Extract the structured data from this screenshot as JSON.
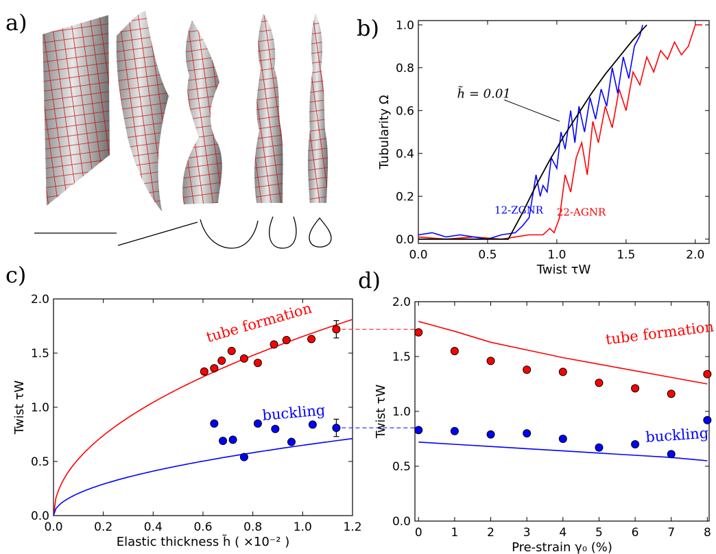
{
  "panels": {
    "a": "a)",
    "b": "b)",
    "c": "c)",
    "d": "d)"
  },
  "panel_a": {
    "type": "rendered-surfaces",
    "count": 5,
    "colors": {
      "mesh": "#cc0000",
      "surface": "#bdbdbd"
    }
  },
  "chart_data": [
    {
      "id": "b",
      "type": "line",
      "xlabel": "Twist τW",
      "ylabel": "Tubularity Ω",
      "xlim": [
        0,
        2.1
      ],
      "ylim": [
        -0.02,
        1.02
      ],
      "xticks": [
        0.0,
        0.5,
        1.0,
        1.5,
        2.0
      ],
      "xtick_labels": [
        "0.0",
        "0.5",
        "1.0",
        "1.5",
        "2.0"
      ],
      "yticks": [
        0.0,
        0.2,
        0.4,
        0.6,
        0.8,
        1.0
      ],
      "ytick_labels": [
        "0.0",
        "0.2",
        "0.4",
        "0.6",
        "0.8",
        "1.0"
      ],
      "annotations": [
        "h̃ = 0.01",
        "12-ZGNR",
        "22-AGNR"
      ],
      "series": [
        {
          "name": "h̃ = 0.01",
          "color": "#000000",
          "x": [
            0.0,
            0.65,
            0.75,
            0.85,
            0.95,
            1.05,
            1.15,
            1.25,
            1.35,
            1.45,
            1.55,
            1.65
          ],
          "y": [
            0.0,
            0.0,
            0.12,
            0.25,
            0.37,
            0.48,
            0.58,
            0.68,
            0.77,
            0.85,
            0.93,
            1.0
          ]
        },
        {
          "name": "12-ZGNR",
          "color": "#0000ff",
          "x": [
            0.0,
            0.1,
            0.2,
            0.3,
            0.4,
            0.5,
            0.6,
            0.7,
            0.75,
            0.8,
            0.85,
            0.88,
            0.9,
            0.93,
            0.96,
            1.0,
            1.03,
            1.06,
            1.1,
            1.13,
            1.16,
            1.2,
            1.24,
            1.28,
            1.32,
            1.36,
            1.4,
            1.44,
            1.48,
            1.52,
            1.56,
            1.6,
            1.62
          ],
          "y": [
            0.02,
            0.03,
            0.01,
            0.02,
            0.01,
            0.0,
            0.02,
            0.03,
            0.06,
            0.1,
            0.3,
            0.2,
            0.25,
            0.22,
            0.38,
            0.33,
            0.5,
            0.42,
            0.6,
            0.45,
            0.62,
            0.5,
            0.66,
            0.56,
            0.7,
            0.62,
            0.8,
            0.68,
            0.85,
            0.75,
            0.9,
            0.95,
            1.0
          ]
        },
        {
          "name": "22-AGNR",
          "color": "#ff0000",
          "x": [
            0.0,
            0.2,
            0.4,
            0.6,
            0.8,
            0.9,
            0.95,
            0.98,
            1.02,
            1.06,
            1.1,
            1.14,
            1.18,
            1.22,
            1.26,
            1.3,
            1.35,
            1.4,
            1.45,
            1.5,
            1.55,
            1.6,
            1.65,
            1.7,
            1.75,
            1.8,
            1.85,
            1.9,
            1.95,
            2.0,
            2.05
          ],
          "y": [
            0.01,
            0.0,
            0.01,
            0.0,
            0.02,
            0.02,
            0.05,
            0.03,
            0.1,
            0.3,
            0.22,
            0.38,
            0.45,
            0.3,
            0.55,
            0.45,
            0.62,
            0.52,
            0.7,
            0.6,
            0.78,
            0.72,
            0.85,
            0.78,
            0.88,
            0.84,
            0.92,
            0.86,
            0.9,
            1.0,
            1.0
          ]
        }
      ]
    },
    {
      "id": "c",
      "type": "scatter",
      "xlabel": "Elastic thickness h̃ ( ×10⁻² )",
      "ylabel": "Twist τW",
      "xlim": [
        0,
        1.2
      ],
      "ylim": [
        0,
        2.0
      ],
      "xticks": [
        0.0,
        0.2,
        0.4,
        0.6,
        0.8,
        1.0,
        1.2
      ],
      "xtick_labels": [
        "0.0",
        "0.2",
        "0.4",
        "0.6",
        "0.8",
        "1.0",
        "1.2"
      ],
      "yticks": [
        0.0,
        0.5,
        1.0,
        1.5,
        2.0
      ],
      "ytick_labels": [
        "0.0",
        "0.5",
        "1.0",
        "1.5",
        "2.0"
      ],
      "annotations": [
        "tube formation",
        "buckling"
      ],
      "series": [
        {
          "name": "tube formation",
          "color": "#ff0000",
          "kind": "curve",
          "a": 1.653,
          "p": 0.5
        },
        {
          "name": "buckling",
          "color": "#0000ff",
          "kind": "curve",
          "a": 0.649,
          "p": 0.5
        },
        {
          "name": "tube formation",
          "color": "#ff0000",
          "kind": "points",
          "x": [
            0.605,
            0.645,
            0.675,
            0.715,
            0.765,
            0.82,
            0.885,
            0.935,
            1.035,
            1.135
          ],
          "y": [
            1.33,
            1.36,
            1.43,
            1.52,
            1.45,
            1.41,
            1.58,
            1.62,
            1.63,
            1.72
          ],
          "err": [
            0,
            0,
            0,
            0,
            0,
            0,
            0,
            0,
            0,
            0.08
          ]
        },
        {
          "name": "buckling",
          "color": "#0000ff",
          "kind": "points",
          "x": [
            0.645,
            0.68,
            0.72,
            0.765,
            0.82,
            0.89,
            0.955,
            1.04,
            1.135
          ],
          "y": [
            0.85,
            0.69,
            0.7,
            0.54,
            0.85,
            0.8,
            0.68,
            0.84,
            0.81
          ],
          "err": [
            0,
            0,
            0,
            0,
            0,
            0,
            0,
            0,
            0.08
          ]
        }
      ]
    },
    {
      "id": "d",
      "type": "scatter",
      "xlabel": "Pre-strain γ₀ (%)",
      "ylabel": "Twist τW",
      "xlim": [
        -0.1,
        8.05
      ],
      "ylim": [
        0,
        2.0
      ],
      "xticks": [
        0,
        1,
        2,
        3,
        4,
        5,
        6,
        7,
        8
      ],
      "xtick_labels": [
        "0",
        "1",
        "2",
        "3",
        "4",
        "5",
        "6",
        "7",
        "8"
      ],
      "yticks": [
        0.0,
        0.5,
        1.0,
        1.5,
        2.0
      ],
      "ytick_labels": [
        "0.0",
        "0.5",
        "1.0",
        "1.5",
        "2.0"
      ],
      "annotations": [
        "tube formation",
        "buckling"
      ],
      "series": [
        {
          "name": "tube formation",
          "color": "#ff0000",
          "kind": "line",
          "x": [
            0,
            1,
            2,
            3,
            4,
            5,
            6,
            7,
            8
          ],
          "y": [
            1.82,
            1.73,
            1.63,
            1.56,
            1.49,
            1.43,
            1.37,
            1.31,
            1.25
          ]
        },
        {
          "name": "buckling",
          "color": "#0000ff",
          "kind": "line",
          "x": [
            0,
            1,
            2,
            3,
            4,
            5,
            6,
            7,
            8
          ],
          "y": [
            0.72,
            0.7,
            0.68,
            0.66,
            0.64,
            0.62,
            0.6,
            0.58,
            0.55
          ]
        },
        {
          "name": "tube formation",
          "color": "#ff0000",
          "kind": "points",
          "x": [
            0,
            1,
            2,
            3,
            4,
            5,
            6,
            7,
            8
          ],
          "y": [
            1.72,
            1.55,
            1.46,
            1.38,
            1.36,
            1.26,
            1.21,
            1.16,
            1.34
          ]
        },
        {
          "name": "buckling",
          "color": "#0000ff",
          "kind": "points",
          "x": [
            0,
            1,
            2,
            3,
            4,
            5,
            6,
            7,
            8
          ],
          "y": [
            0.83,
            0.82,
            0.79,
            0.8,
            0.75,
            0.67,
            0.7,
            0.61,
            0.92
          ]
        }
      ]
    }
  ]
}
